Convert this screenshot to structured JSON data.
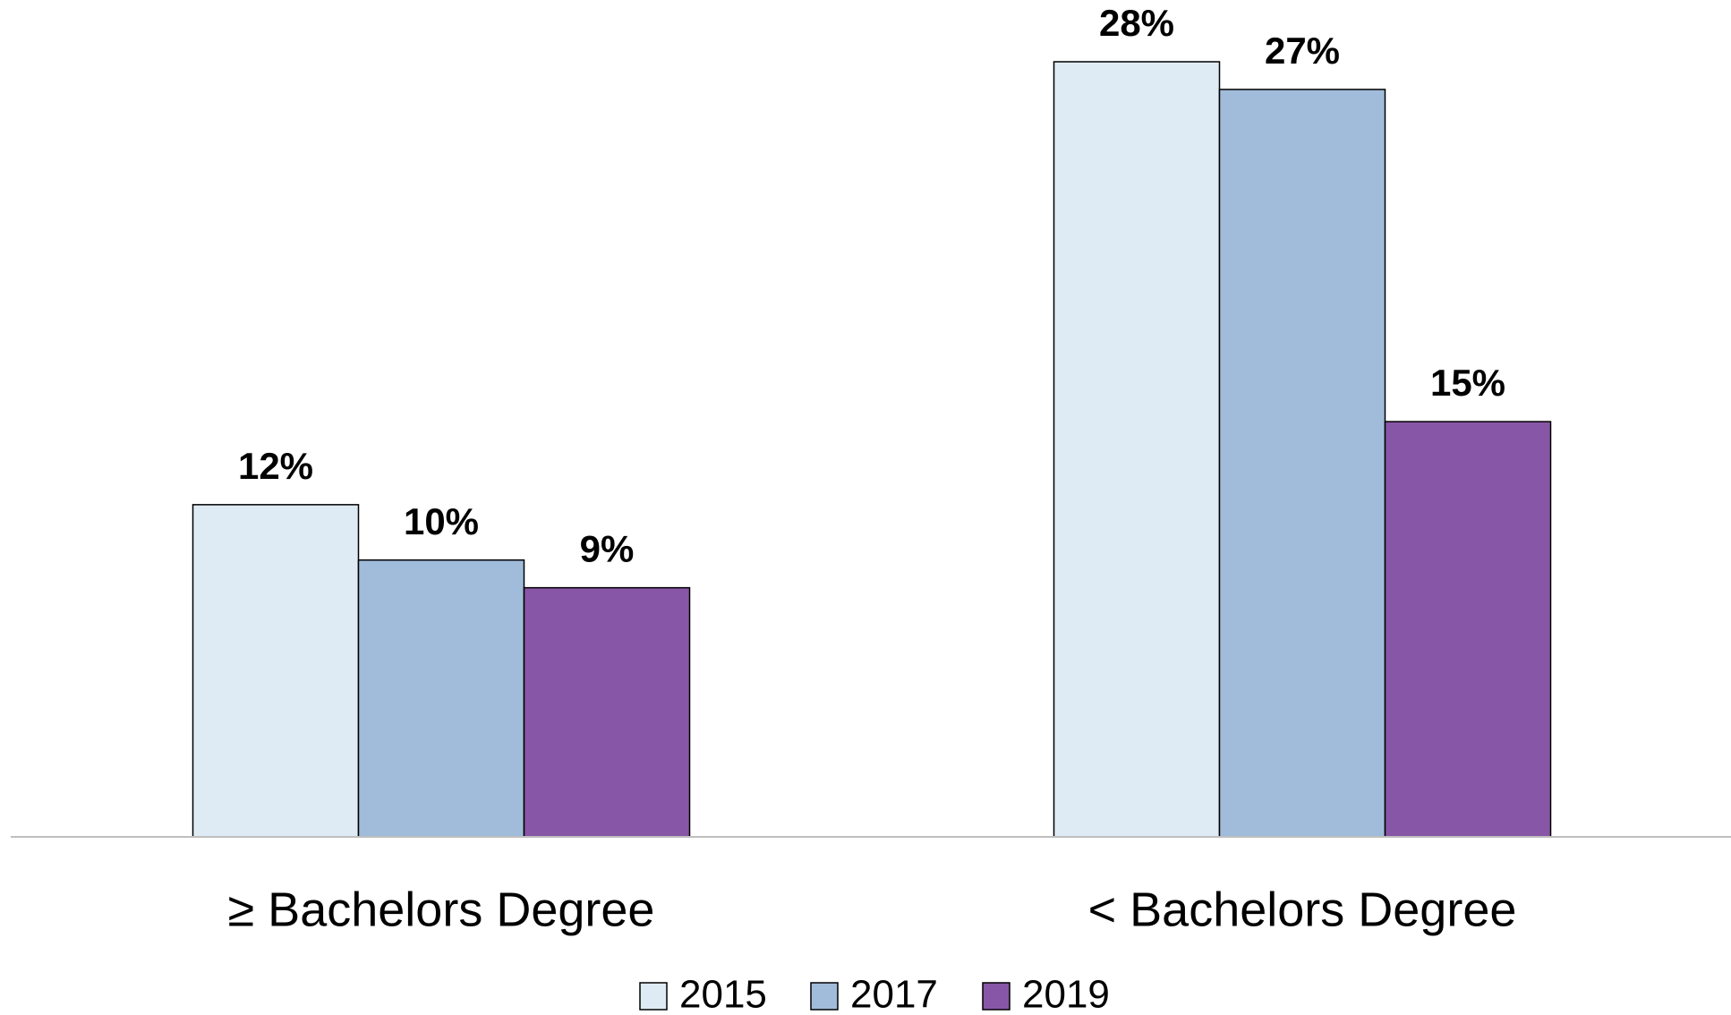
{
  "chart_data": {
    "type": "bar",
    "categories": [
      "≥ Bachelors Degree",
      "< Bachelors Degree"
    ],
    "series": [
      {
        "name": "2015",
        "color": "#dfebf4",
        "values": [
          12,
          28
        ],
        "value_labels": [
          "12%",
          "28%"
        ]
      },
      {
        "name": "2017",
        "color": "#a0bcda",
        "values": [
          10,
          27
        ],
        "value_labels": [
          "10%",
          "27%"
        ]
      },
      {
        "name": "2019",
        "color": "#8856a6",
        "values": [
          9,
          15
        ],
        "value_labels": [
          "9%",
          "15%"
        ]
      }
    ],
    "legend": "bottom"
  }
}
